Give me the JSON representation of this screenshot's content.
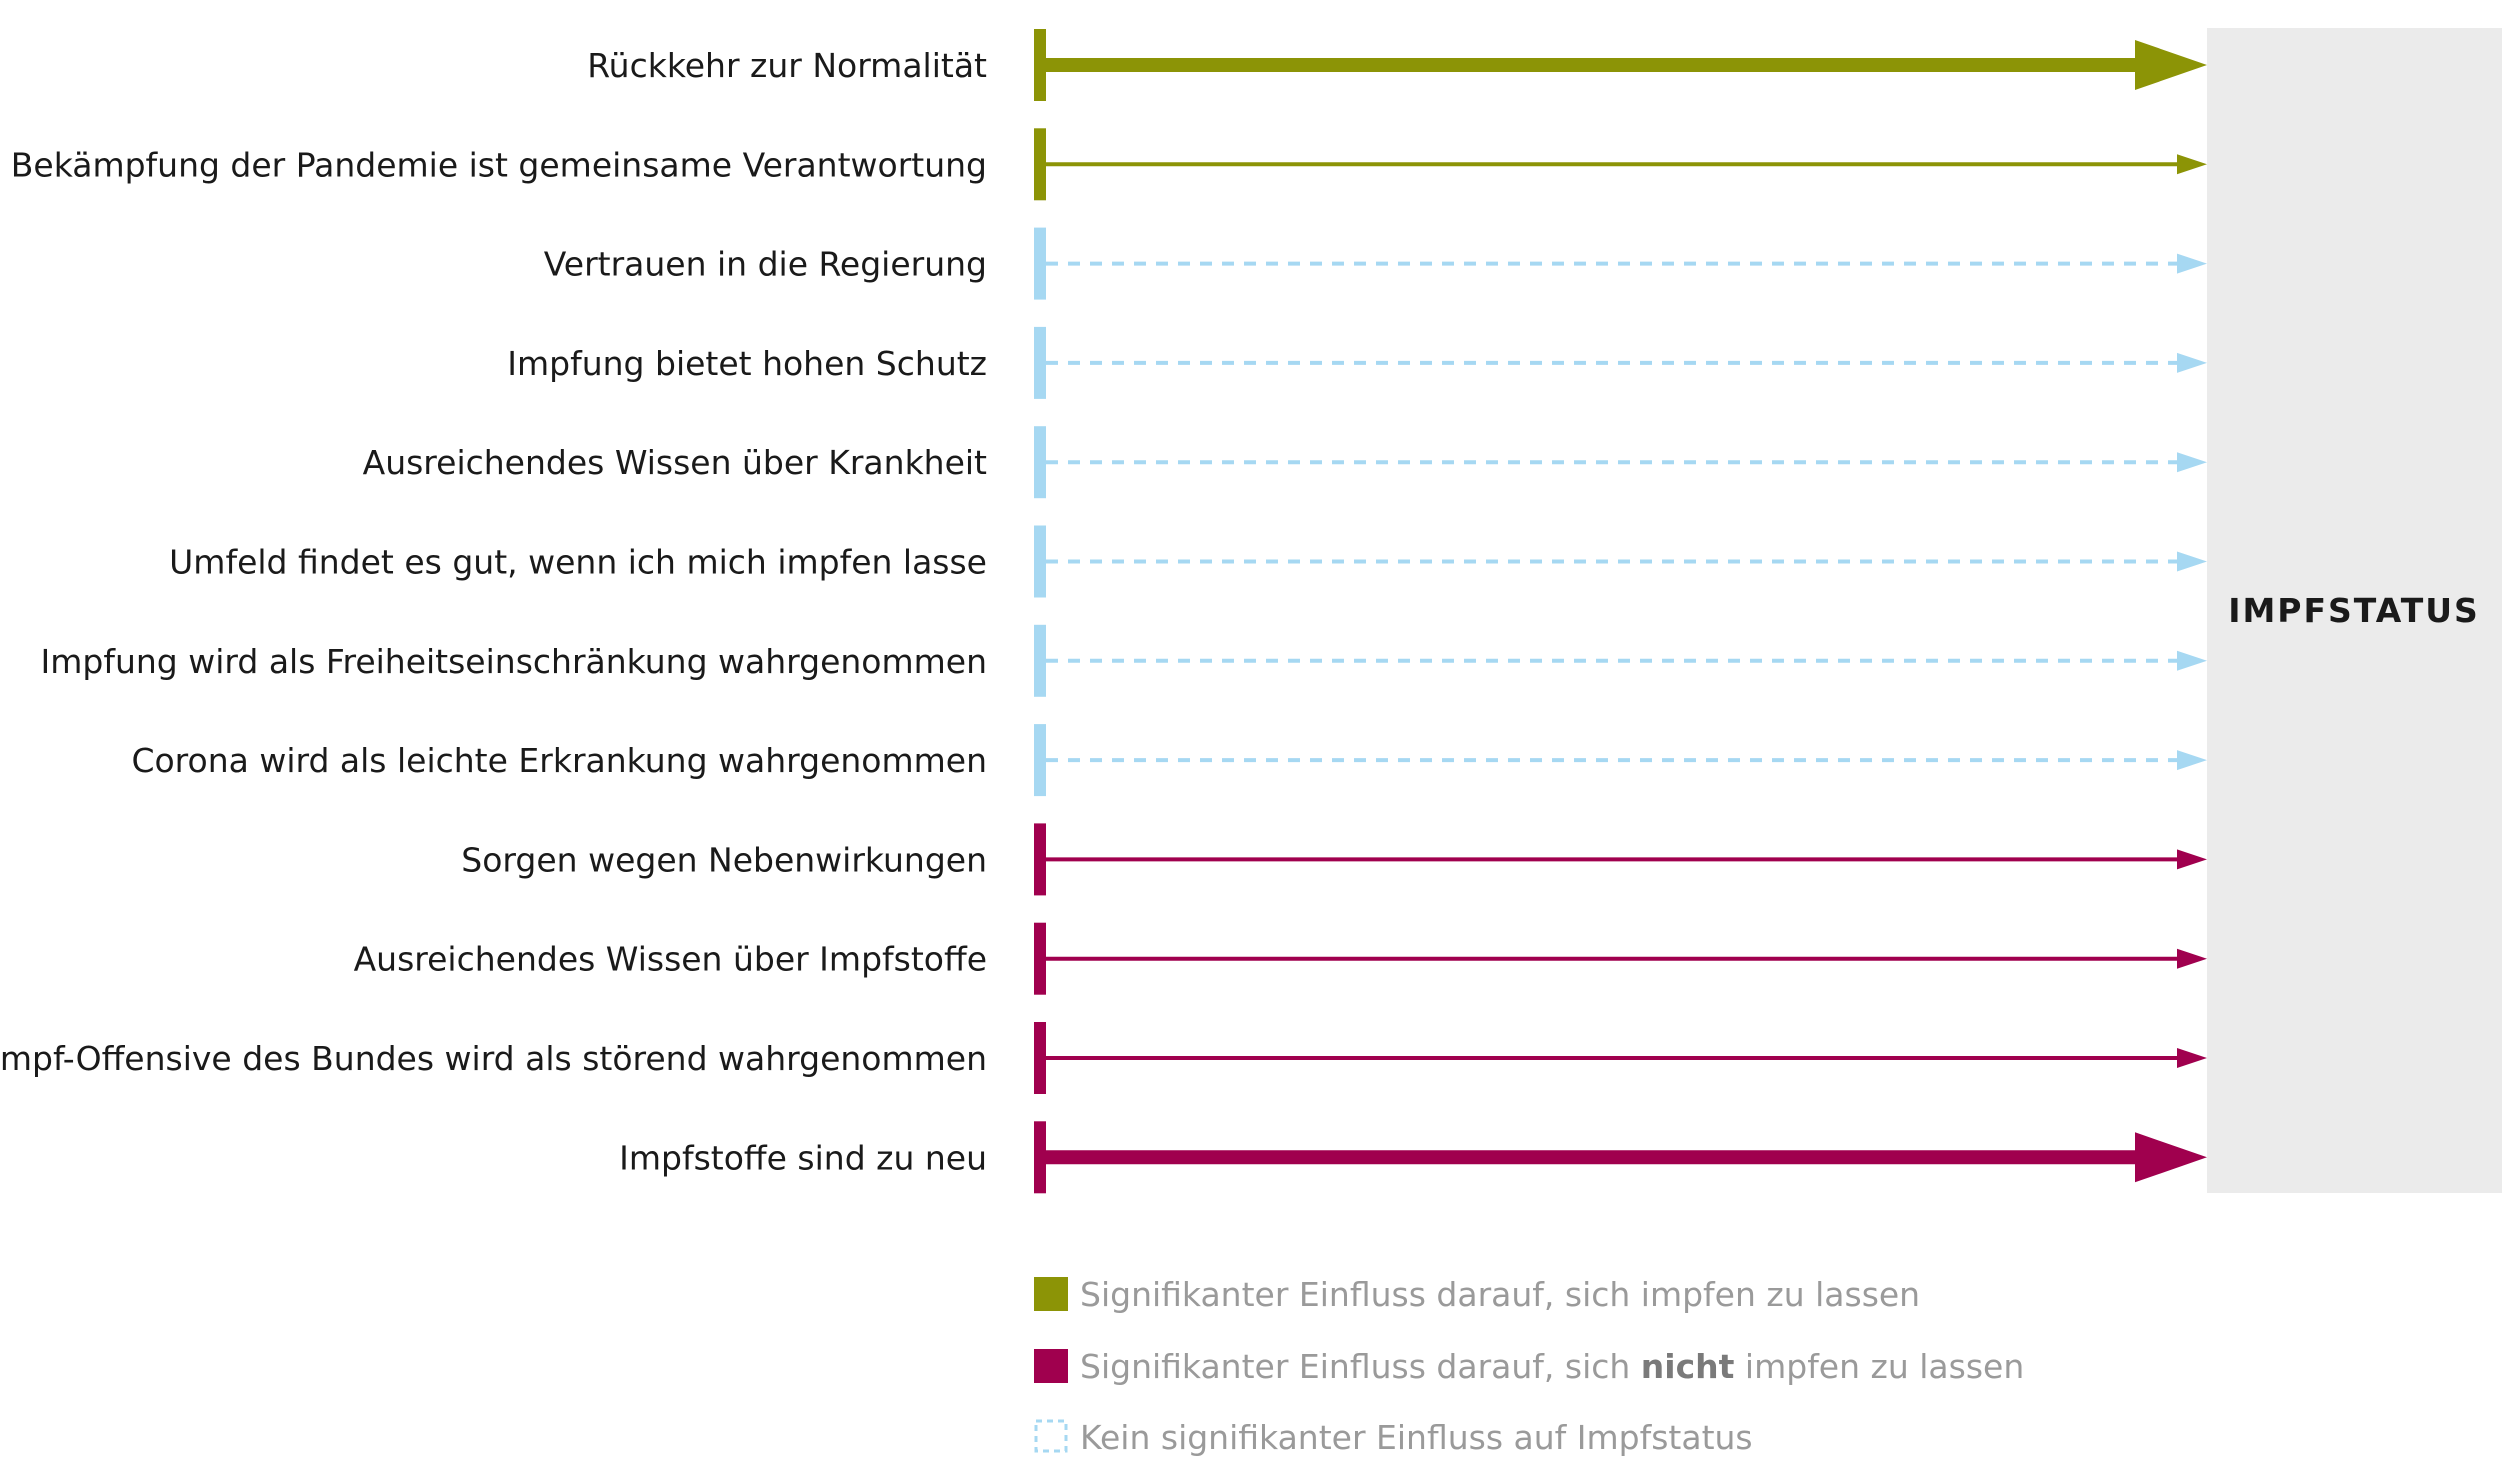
{
  "colors": {
    "positive": "#8c9406",
    "negative": "#a0004e",
    "neutral": "#a6d8f2",
    "target_box": "#ebebeb",
    "legend_text": "#9a9a9a"
  },
  "target": {
    "label": "IMPFSTATUS"
  },
  "factors": [
    {
      "label": "Rückkehr zur Normalität",
      "effect": "positive",
      "strength": "strong"
    },
    {
      "label": "Bekämpfung der Pandemie ist gemeinsame Verantwortung",
      "effect": "positive",
      "strength": "normal"
    },
    {
      "label": "Vertrauen in die Regierung",
      "effect": "none",
      "strength": "normal"
    },
    {
      "label": "Impfung bietet hohen Schutz",
      "effect": "none",
      "strength": "normal"
    },
    {
      "label": "Ausreichendes Wissen über Krankheit",
      "effect": "none",
      "strength": "normal"
    },
    {
      "label": "Umfeld findet es gut, wenn ich mich impfen lasse",
      "effect": "none",
      "strength": "normal"
    },
    {
      "label": "Impfung wird als Freiheitseinschränkung wahrgenommen",
      "effect": "none",
      "strength": "normal"
    },
    {
      "label": "Corona wird als leichte Erkrankung wahrgenommen",
      "effect": "none",
      "strength": "normal"
    },
    {
      "label": "Sorgen wegen Nebenwirkungen",
      "effect": "negative",
      "strength": "normal"
    },
    {
      "label": "Ausreichendes Wissen über Impfstoffe",
      "effect": "negative",
      "strength": "normal"
    },
    {
      "label": "Impf-Offensive des Bundes wird als störend wahrgenommen",
      "effect": "negative",
      "strength": "normal"
    },
    {
      "label": "Impfstoffe sind zu neu",
      "effect": "negative",
      "strength": "strong"
    }
  ],
  "legend": {
    "positive": {
      "text": "Signifikanter Einfluss darauf, sich impfen zu lassen"
    },
    "negative": {
      "before": "Signifikanter Einfluss darauf, sich ",
      "bold": "nicht",
      "after": " impfen zu lassen"
    },
    "none": {
      "text": "Kein signifikanter Einfluss auf Impfstatus"
    }
  }
}
